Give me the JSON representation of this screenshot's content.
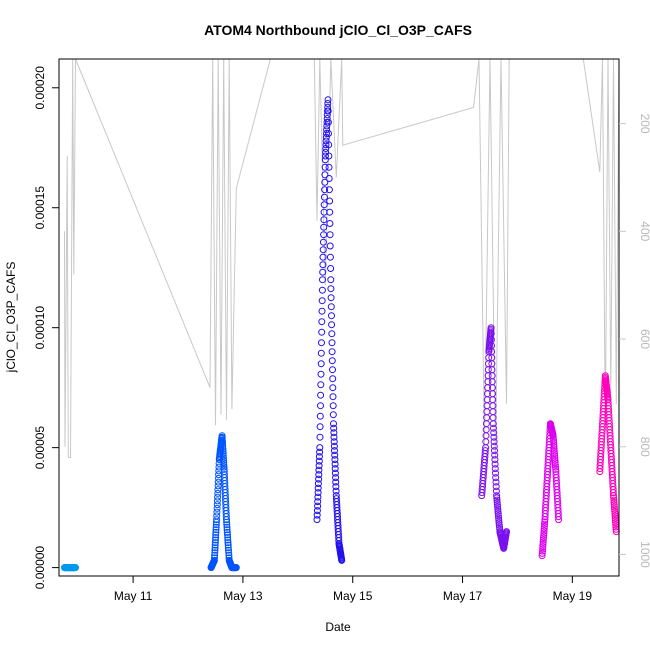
{
  "chart_data": {
    "type": "scatter",
    "title": "ATOM4 Northbound jClO_Cl_O3P_CAFS",
    "xlabel": "Date",
    "ylabel": "jClO_Cl_O3P_CAFS",
    "x_unit": "days in May",
    "xlim": [
      9.65,
      19.85
    ],
    "ylim": [
      -3.5e-06,
      0.000212
    ],
    "x_ticks": [
      {
        "value": 11,
        "label": "May 11"
      },
      {
        "value": 13,
        "label": "May 13"
      },
      {
        "value": 15,
        "label": "May 15"
      },
      {
        "value": 17,
        "label": "May 17"
      },
      {
        "value": 19,
        "label": "May 19"
      }
    ],
    "y_ticks": [
      {
        "value": 0,
        "label": "0.00000"
      },
      {
        "value": 5e-05,
        "label": "0.00005"
      },
      {
        "value": 0.0001,
        "label": "0.00010"
      },
      {
        "value": 0.00015,
        "label": "0.00015"
      },
      {
        "value": 0.0002,
        "label": "0.00020"
      }
    ],
    "y2_axis": {
      "range": [
        80,
        1040
      ],
      "inverted": true,
      "color": "#c8c8c8",
      "ticks": [
        {
          "value": 200,
          "label": "200"
        },
        {
          "value": 400,
          "label": "400"
        },
        {
          "value": 600,
          "label": "600"
        },
        {
          "value": 800,
          "label": "800"
        },
        {
          "value": 1000,
          "label": "1000"
        }
      ]
    },
    "series": [
      {
        "color": "#0099ee",
        "points": [
          [
            9.75,
            0
          ],
          [
            9.8,
            0
          ],
          [
            9.85,
            0
          ],
          [
            9.9,
            0
          ],
          [
            9.95,
            0
          ]
        ]
      },
      {
        "color": "#0055ff",
        "points": [
          [
            12.42,
            0
          ],
          [
            12.48,
            3e-06
          ],
          [
            12.52,
            2e-05
          ],
          [
            12.57,
            4.5e-05
          ],
          [
            12.62,
            5.5e-05
          ],
          [
            12.66,
            4e-05
          ],
          [
            12.7,
            2e-05
          ],
          [
            12.75,
            3e-06
          ],
          [
            12.8,
            0
          ],
          [
            12.88,
            0
          ]
        ]
      },
      {
        "color": "#2211ee",
        "points": [
          [
            14.35,
            2e-05
          ],
          [
            14.4,
            5e-05
          ],
          [
            14.45,
            0.00012
          ],
          [
            14.5,
            0.00017
          ],
          [
            14.55,
            0.000195
          ],
          [
            14.6,
            0.00012
          ],
          [
            14.65,
            6e-05
          ],
          [
            14.7,
            3e-05
          ],
          [
            14.75,
            1e-05
          ],
          [
            14.8,
            3e-06
          ]
        ]
      },
      {
        "color": "#7a11ee",
        "points": [
          [
            17.35,
            3e-05
          ],
          [
            17.42,
            5e-05
          ],
          [
            17.48,
            9e-05
          ],
          [
            17.52,
            0.0001
          ],
          [
            17.56,
            6e-05
          ],
          [
            17.62,
            3e-05
          ],
          [
            17.68,
            1.5e-05
          ],
          [
            17.75,
            8e-06
          ],
          [
            17.8,
            1.5e-05
          ]
        ]
      },
      {
        "color": "#dd00ee",
        "points": [
          [
            18.45,
            5e-06
          ],
          [
            18.5,
            2e-05
          ],
          [
            18.55,
            4e-05
          ],
          [
            18.6,
            6e-05
          ],
          [
            18.65,
            5.5e-05
          ],
          [
            18.7,
            4e-05
          ],
          [
            18.75,
            2e-05
          ]
        ]
      },
      {
        "color": "#ff00bb",
        "points": [
          [
            19.5,
            4e-05
          ],
          [
            19.55,
            6e-05
          ],
          [
            19.6,
            8e-05
          ],
          [
            19.65,
            7e-05
          ],
          [
            19.7,
            5e-05
          ],
          [
            19.75,
            3e-05
          ],
          [
            19.8,
            1.5e-05
          ]
        ]
      }
    ],
    "pressure_series": {
      "color": "#c8c8c8",
      "points": [
        [
          9.75,
          400
        ],
        [
          9.76,
          800
        ],
        [
          9.8,
          260
        ],
        [
          9.82,
          820
        ],
        [
          9.86,
          820
        ],
        [
          9.9,
          80
        ],
        [
          9.92,
          480
        ],
        [
          9.95,
          80
        ],
        [
          12.4,
          690
        ],
        [
          12.45,
          80
        ],
        [
          12.5,
          760
        ],
        [
          12.55,
          80
        ],
        [
          12.6,
          740
        ],
        [
          12.65,
          80
        ],
        [
          12.7,
          750
        ],
        [
          12.75,
          80
        ],
        [
          12.8,
          730
        ],
        [
          12.88,
          320
        ],
        [
          13.5,
          80
        ],
        [
          14.3,
          80
        ],
        [
          14.35,
          380
        ],
        [
          14.4,
          80
        ],
        [
          14.5,
          500
        ],
        [
          14.6,
          80
        ],
        [
          14.7,
          300
        ],
        [
          14.8,
          80
        ],
        [
          14.82,
          240
        ],
        [
          17.2,
          170
        ],
        [
          17.3,
          80
        ],
        [
          17.4,
          800
        ],
        [
          17.5,
          80
        ],
        [
          17.6,
          820
        ],
        [
          17.7,
          80
        ],
        [
          17.8,
          720
        ],
        [
          17.85,
          80
        ],
        [
          18.6,
          80
        ],
        [
          18.7,
          80
        ],
        [
          19.2,
          80
        ],
        [
          19.5,
          290
        ],
        [
          19.55,
          80
        ],
        [
          19.6,
          770
        ],
        [
          19.65,
          80
        ],
        [
          19.7,
          700
        ],
        [
          19.75,
          80
        ],
        [
          19.8,
          720
        ],
        [
          19.85,
          80
        ]
      ]
    }
  }
}
